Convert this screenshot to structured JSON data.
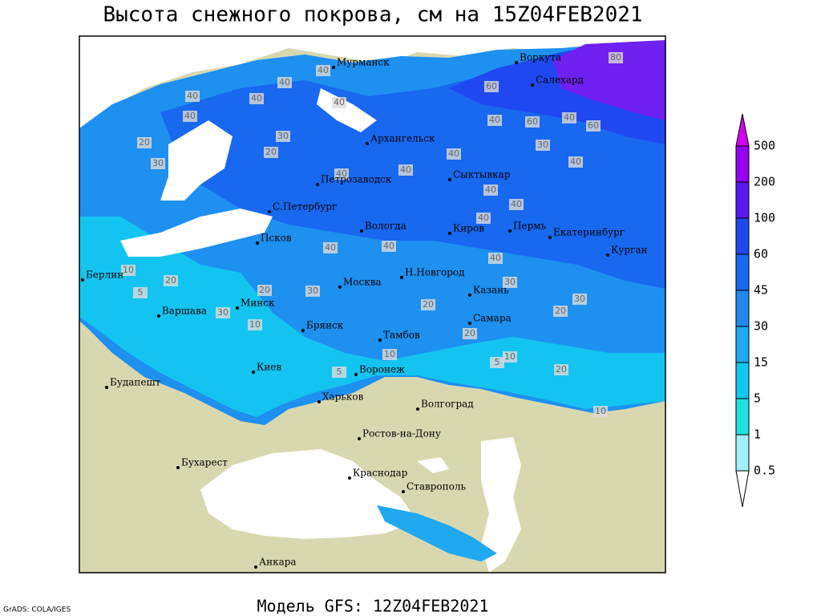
{
  "title": "Высота снежного покрова, см на 15Z04FEB2021",
  "footer": "Модель GFS: 12Z04FEB2021",
  "credit": "GrADS: COLA/IGES",
  "cities": [
    "Мурманск",
    "Воркута",
    "Салехард",
    "Архангельск",
    "Петрозаводск",
    "Сыктывкар",
    "С.Петербург",
    "Вологда",
    "Киров",
    "Пермь",
    "Екатеринбург",
    "Курган",
    "Псков",
    "Москва",
    "Н.Новгород",
    "Казань",
    "Берлин",
    "Минск",
    "Варшава",
    "Брянск",
    "Тамбов",
    "Самара",
    "Киев",
    "Воронеж",
    "Будапешт",
    "Харьков",
    "Волгоград",
    "Ростов-на-Дону",
    "Бухарест",
    "Краснодар",
    "Ставрополь",
    "Анкара"
  ],
  "contour_labels": [
    80,
    60,
    40,
    40,
    40,
    40,
    40,
    20,
    30,
    30,
    20,
    40,
    40,
    60,
    40,
    60,
    30,
    40,
    40,
    40,
    40,
    40,
    40,
    40,
    40,
    40,
    40,
    30,
    20,
    10,
    5,
    20,
    30,
    30,
    10,
    20,
    20,
    30,
    20,
    10,
    5,
    10,
    20,
    5,
    10
  ],
  "legend": {
    "levels": [
      0.5,
      1,
      5,
      15,
      30,
      45,
      60,
      100,
      200,
      500
    ],
    "colors": [
      "#ffffff",
      "#a0f0ff",
      "#20e0e0",
      "#10c8f0",
      "#20a8f0",
      "#2088f0",
      "#1868f0",
      "#2048f0",
      "#5818f0",
      "#9400f0",
      "#d400f0"
    ]
  }
}
